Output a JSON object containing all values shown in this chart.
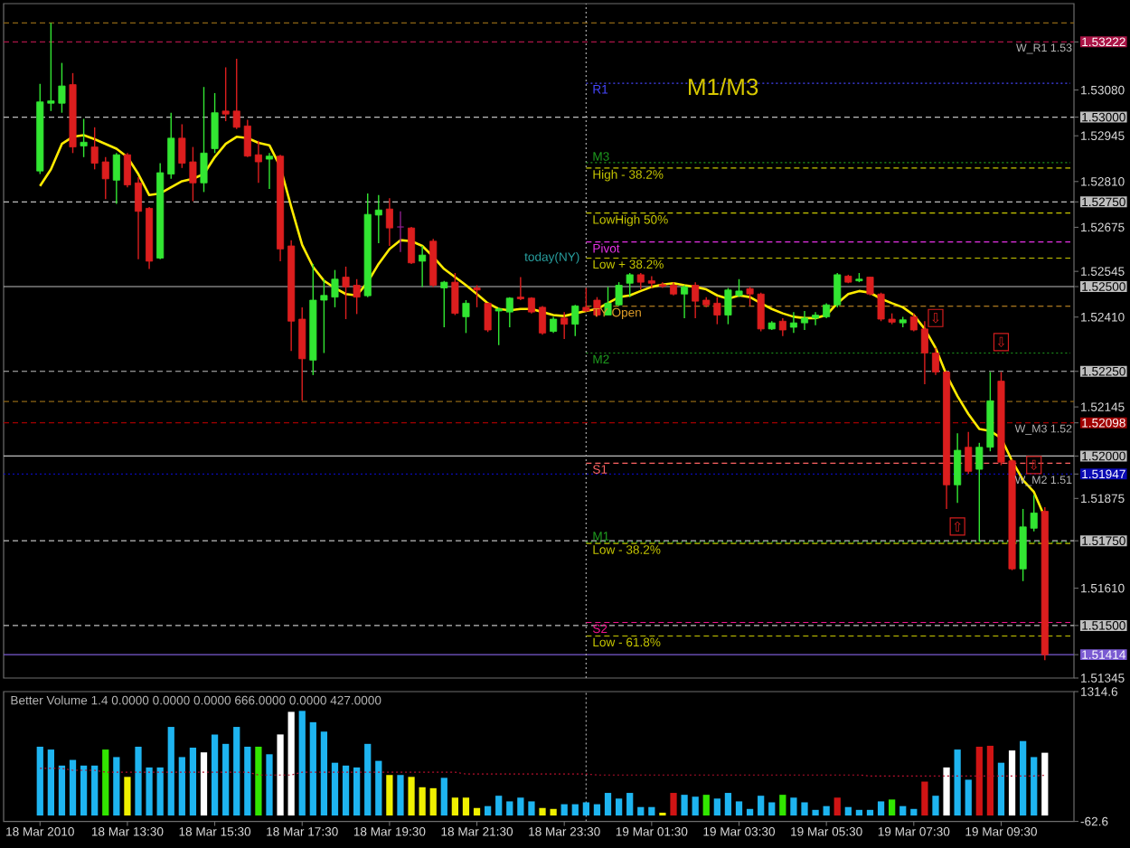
{
  "chart_data": [
    {
      "type": "candlestick",
      "x": [
        "2010-03-18T11:30",
        "2010-03-18T11:45",
        "2010-03-18T12:00",
        "2010-03-18T12:15",
        "2010-03-18T12:30",
        "2010-03-18T12:45",
        "2010-03-18T13:00",
        "2010-03-18T13:15",
        "2010-03-18T13:30",
        "2010-03-18T13:45",
        "2010-03-18T14:00",
        "2010-03-18T14:15",
        "2010-03-18T14:30",
        "2010-03-18T14:45",
        "2010-03-18T15:00",
        "2010-03-18T15:15",
        "2010-03-18T15:30",
        "2010-03-18T15:45",
        "2010-03-18T16:00",
        "2010-03-18T16:15",
        "2010-03-18T16:30",
        "2010-03-18T16:45",
        "2010-03-18T17:00",
        "2010-03-18T17:15",
        "2010-03-18T17:30",
        "2010-03-18T17:45",
        "2010-03-18T18:00",
        "2010-03-18T18:15",
        "2010-03-18T18:30",
        "2010-03-18T18:45",
        "2010-03-18T19:00",
        "2010-03-18T19:15",
        "2010-03-18T19:30",
        "2010-03-18T19:45",
        "2010-03-18T20:00",
        "2010-03-18T20:15",
        "2010-03-18T20:30",
        "2010-03-18T20:45",
        "2010-03-18T21:00",
        "2010-03-18T21:15",
        "2010-03-18T21:30",
        "2010-03-18T21:45",
        "2010-03-18T22:00",
        "2010-03-18T22:15",
        "2010-03-18T22:30",
        "2010-03-18T22:45",
        "2010-03-18T23:00",
        "2010-03-18T23:15",
        "2010-03-18T23:30",
        "2010-03-18T23:45",
        "2010-03-19T00:00",
        "2010-03-19T00:15",
        "2010-03-19T00:30",
        "2010-03-19T00:45",
        "2010-03-19T01:00",
        "2010-03-19T01:15",
        "2010-03-19T01:30",
        "2010-03-19T01:45",
        "2010-03-19T02:00",
        "2010-03-19T02:15",
        "2010-03-19T02:30",
        "2010-03-19T02:45",
        "2010-03-19T03:00",
        "2010-03-19T03:15",
        "2010-03-19T03:30",
        "2010-03-19T03:45",
        "2010-03-19T04:00",
        "2010-03-19T04:15",
        "2010-03-19T04:30",
        "2010-03-19T04:45",
        "2010-03-19T05:00",
        "2010-03-19T05:15",
        "2010-03-19T05:30",
        "2010-03-19T05:45",
        "2010-03-19T06:00",
        "2010-03-19T06:15",
        "2010-03-19T06:30",
        "2010-03-19T06:45",
        "2010-03-19T07:00",
        "2010-03-19T07:15",
        "2010-03-19T07:30",
        "2010-03-19T07:45",
        "2010-03-19T08:00",
        "2010-03-19T08:15",
        "2010-03-19T08:30",
        "2010-03-19T08:45",
        "2010-03-19T09:00",
        "2010-03-19T09:15",
        "2010-03-19T09:30",
        "2010-03-19T09:45",
        "2010-03-19T10:00",
        "2010-03-19T10:15",
        "2010-03-19T10:30"
      ],
      "ohlc": [
        [
          1.52841,
          1.53098,
          1.52832,
          1.53045
        ],
        [
          1.53041,
          1.53278,
          1.53018,
          1.53048
        ],
        [
          1.53041,
          1.5316,
          1.53013,
          1.53092
        ],
        [
          1.53096,
          1.5313,
          1.52894,
          1.52912
        ],
        [
          1.52915,
          1.52995,
          1.52882,
          1.52926
        ],
        [
          1.52912,
          1.5297,
          1.52846,
          1.52864
        ],
        [
          1.52868,
          1.52882,
          1.52758,
          1.52818
        ],
        [
          1.52814,
          1.52894,
          1.52744,
          1.52889
        ],
        [
          1.52889,
          1.52894,
          1.52793,
          1.528
        ],
        [
          1.52806,
          1.52823,
          1.52581,
          1.52722
        ],
        [
          1.52731,
          1.52735,
          1.52552,
          1.52575
        ],
        [
          1.52584,
          1.52864,
          1.52581,
          1.52836
        ],
        [
          1.52832,
          1.53013,
          1.52818,
          1.52938
        ],
        [
          1.52938,
          1.52979,
          1.5285,
          1.52864
        ],
        [
          1.52868,
          1.52912,
          1.52752,
          1.52806
        ],
        [
          1.52806,
          1.53089,
          1.52779,
          1.52894
        ],
        [
          1.52907,
          1.53071,
          1.52894,
          1.53013
        ],
        [
          1.53018,
          1.53147,
          1.52988,
          1.53009
        ],
        [
          1.53018,
          1.53172,
          1.52965,
          1.5297
        ],
        [
          1.52974,
          1.52992,
          1.52882,
          1.52885
        ],
        [
          1.52889,
          1.5293,
          1.52806,
          1.52868
        ],
        [
          1.52876,
          1.52894,
          1.52788,
          1.52885
        ],
        [
          1.52885,
          1.52889,
          1.52575,
          1.52611
        ],
        [
          1.5262,
          1.52637,
          1.5231,
          1.52398
        ],
        [
          1.52404,
          1.52439,
          1.52163,
          1.52287
        ],
        [
          1.52283,
          1.52567,
          1.52239,
          1.5246
        ],
        [
          1.5246,
          1.52522,
          1.52304,
          1.52474
        ],
        [
          1.52469,
          1.52549,
          1.52439,
          1.52522
        ],
        [
          1.52528,
          1.52559,
          1.52404,
          1.52499
        ],
        [
          1.52504,
          1.52522,
          1.52419,
          1.52469
        ],
        [
          1.52473,
          1.52775,
          1.52469,
          1.52713
        ],
        [
          1.52711,
          1.5277,
          1.52628,
          1.52726
        ],
        [
          1.52729,
          1.52761,
          1.5262,
          1.52673
        ],
        [
          1.52676,
          1.52722,
          1.52602,
          1.52676
        ],
        [
          1.52673,
          1.52676,
          1.52567,
          1.5257
        ],
        [
          1.52575,
          1.5262,
          1.52499,
          1.52593
        ],
        [
          1.52634,
          1.52641,
          1.52499,
          1.52504
        ],
        [
          1.52496,
          1.52517,
          1.5238,
          1.52513
        ],
        [
          1.52513,
          1.5254,
          1.52416,
          1.52421
        ],
        [
          1.52411,
          1.5246,
          1.52363,
          1.52451
        ],
        [
          1.52496,
          1.52504,
          1.52439,
          1.5249
        ],
        [
          1.52451,
          1.52451,
          1.52366,
          1.52372
        ],
        [
          1.52428,
          1.52439,
          1.52327,
          1.52434
        ],
        [
          1.52425,
          1.52469,
          1.5238,
          1.52466
        ],
        [
          1.52469,
          1.52528,
          1.5246,
          1.52464
        ],
        [
          1.52466,
          1.52469,
          1.52421,
          1.52425
        ],
        [
          1.52439,
          1.52443,
          1.52358,
          1.52363
        ],
        [
          1.52368,
          1.52411,
          1.52363,
          1.52404
        ],
        [
          1.52407,
          1.52425,
          1.52345,
          1.52389
        ],
        [
          1.52389,
          1.52446,
          1.52354,
          1.52443
        ],
        [
          1.52439,
          1.52496,
          1.52425,
          1.52428
        ],
        [
          1.5246,
          1.52469,
          1.52411,
          1.52416
        ],
        [
          1.52416,
          1.52499,
          1.52416,
          1.52451
        ],
        [
          1.52446,
          1.52513,
          1.52443,
          1.52504
        ],
        [
          1.5251,
          1.5254,
          1.52469,
          1.52535
        ],
        [
          1.52535,
          1.5254,
          1.52492,
          1.52513
        ],
        [
          1.52517,
          1.52531,
          1.52496,
          1.5251
        ],
        [
          1.52506,
          1.52513,
          1.52496,
          1.52501
        ],
        [
          1.52504,
          1.52513,
          1.52474,
          1.52478
        ],
        [
          1.52478,
          1.52504,
          1.52407,
          1.52499
        ],
        [
          1.52504,
          1.52513,
          1.52407,
          1.52457
        ],
        [
          1.5246,
          1.52469,
          1.52439,
          1.52446
        ],
        [
          1.52451,
          1.52469,
          1.52389,
          1.52416
        ],
        [
          1.52416,
          1.52496,
          1.52389,
          1.5249
        ],
        [
          1.52474,
          1.52522,
          1.52469,
          1.52487
        ],
        [
          1.52494,
          1.52499,
          1.52443,
          1.52478
        ],
        [
          1.52478,
          1.52482,
          1.52368,
          1.52375
        ],
        [
          1.52375,
          1.52398,
          1.52372,
          1.52393
        ],
        [
          1.52398,
          1.52407,
          1.52354,
          1.52372
        ],
        [
          1.5238,
          1.52425,
          1.52363,
          1.52393
        ],
        [
          1.52393,
          1.52428,
          1.52372,
          1.52407
        ],
        [
          1.52407,
          1.52425,
          1.52386,
          1.52416
        ],
        [
          1.52411,
          1.52451,
          1.52407,
          1.52446
        ],
        [
          1.52446,
          1.5254,
          1.52439,
          1.52535
        ],
        [
          1.52531,
          1.52535,
          1.5251,
          1.52513
        ],
        [
          1.52517,
          1.5254,
          1.52513,
          1.52522
        ],
        [
          1.52528,
          1.52528,
          1.52474,
          1.52478
        ],
        [
          1.52478,
          1.52482,
          1.52398,
          1.52404
        ],
        [
          1.52404,
          1.52421,
          1.52389,
          1.52395
        ],
        [
          1.52393,
          1.52411,
          1.5238,
          1.52402
        ],
        [
          1.52411,
          1.52421,
          1.52368,
          1.52372
        ],
        [
          1.52375,
          1.52398,
          1.52212,
          1.52304
        ],
        [
          1.52304,
          1.52319,
          1.52239,
          1.52248
        ],
        [
          1.52248,
          1.52251,
          1.51844,
          1.51915
        ],
        [
          1.51915,
          1.52067,
          1.51862,
          1.52017
        ],
        [
          1.52026,
          1.52071,
          1.51947,
          1.51955
        ],
        [
          1.51961,
          1.52039,
          1.51748,
          1.52026
        ],
        [
          1.52026,
          1.52248,
          1.52014,
          1.52163
        ],
        [
          1.52221,
          1.52248,
          1.51973,
          1.51982
        ],
        [
          1.51986,
          1.51991,
          1.51663,
          1.51667
        ],
        [
          1.51667,
          1.51844,
          1.51631,
          1.51791
        ],
        [
          1.51787,
          1.51885,
          1.51778,
          1.51832
        ],
        [
          1.51837,
          1.51849,
          1.51398,
          1.51414
        ]
      ],
      "colors": [
        "#32e632",
        "#32e632",
        "#32e632",
        "#dc1e1e",
        "#32e632",
        "#dc1e1e",
        "#dc1e1e",
        "#32e632",
        "#dc1e1e",
        "#dc1e1e",
        "#dc1e1e",
        "#32e632",
        "#32e632",
        "#dc1e1e",
        "#dc1e1e",
        "#32e632",
        "#32e632",
        "#dc1e1e",
        "#dc1e1e",
        "#dc1e1e",
        "#dc1e1e",
        "#32e632",
        "#dc1e1e",
        "#dc1e1e",
        "#dc1e1e",
        "#32e632",
        "#32e632",
        "#32e632",
        "#dc1e1e",
        "#dc1e1e",
        "#32e632",
        "#32e632",
        "#dc1e1e",
        "#8c1e8c",
        "#dc1e1e",
        "#32e632",
        "#dc1e1e",
        "#32e632",
        "#dc1e1e",
        "#32e632",
        "#dc1e1e",
        "#dc1e1e",
        "#32e632",
        "#32e632",
        "#dc1e1e",
        "#dc1e1e",
        "#dc1e1e",
        "#32e632",
        "#dc1e1e",
        "#32e632",
        "#dc1e1e",
        "#dc1e1e",
        "#32e632",
        "#32e632",
        "#32e632",
        "#dc1e1e",
        "#dc1e1e",
        "#dc1e1e",
        "#dc1e1e",
        "#32e632",
        "#dc1e1e",
        "#dc1e1e",
        "#dc1e1e",
        "#32e632",
        "#32e632",
        "#dc1e1e",
        "#dc1e1e",
        "#32e632",
        "#dc1e1e",
        "#32e632",
        "#32e632",
        "#32e632",
        "#32e632",
        "#32e632",
        "#dc1e1e",
        "#32e632",
        "#dc1e1e",
        "#dc1e1e",
        "#dc1e1e",
        "#32e632",
        "#dc1e1e",
        "#dc1e1e",
        "#dc1e1e",
        "#dc1e1e",
        "#32e632",
        "#dc1e1e",
        "#32e632",
        "#32e632",
        "#dc1e1e",
        "#dc1e1e",
        "#32e632",
        "#32e632",
        "#dc1e1e"
      ],
      "series": [
        {
          "type": "line",
          "name": "R1",
          "color": "#4646ff",
          "line_style": "dotted",
          "x": [
            "2010-03-19T00:00",
            "2010-03-19T11:05"
          ],
          "values": [
            1.531,
            1.531
          ]
        },
        {
          "type": "line",
          "name": "M3",
          "color": "#1e9b1e",
          "line_style": "dotted",
          "x": [
            "2010-03-19T00:00",
            "2010-03-19T11:05"
          ],
          "values": [
            1.52866,
            1.52866
          ]
        },
        {
          "type": "line",
          "name": "High - 38.2%",
          "color": "#c8c800",
          "line_style": "dashed",
          "x": [
            "2010-03-19T00:00",
            "2010-03-19T11:05"
          ],
          "values": [
            1.5285,
            1.5285
          ]
        },
        {
          "type": "line",
          "name": "LowHigh 50%",
          "color": "#c8c800",
          "line_style": "dashed",
          "x": [
            "2010-03-19T00:00",
            "2010-03-19T11:05"
          ],
          "values": [
            1.52717,
            1.52717
          ]
        },
        {
          "type": "line",
          "name": "Pivot",
          "color": "#e632e6",
          "line_style": "dashed",
          "x": [
            "2010-03-19T00:00",
            "2010-03-19T11:05"
          ],
          "values": [
            1.52632,
            1.52632
          ]
        },
        {
          "type": "line",
          "name": "Low + 38.2%",
          "color": "#c8c800",
          "line_style": "dashed",
          "x": [
            "2010-03-19T00:00",
            "2010-03-19T11:05"
          ],
          "values": [
            1.52584,
            1.52584
          ]
        },
        {
          "type": "line",
          "name": "TY Open",
          "color": "#dc9b28",
          "line_style": "dashed",
          "x": [
            "2010-03-19T00:00",
            "2010-03-19T11:05"
          ],
          "values": [
            1.52442,
            1.52442
          ]
        },
        {
          "type": "line",
          "name": "M2",
          "color": "#1e9b1e",
          "line_style": "dotted",
          "x": [
            "2010-03-19T00:00",
            "2010-03-19T11:05"
          ],
          "values": [
            1.52304,
            1.52304
          ]
        },
        {
          "type": "line",
          "name": "S1",
          "color": "#ff6464",
          "line_style": "dashed",
          "x": [
            "2010-03-19T00:00",
            "2010-03-19T11:05"
          ],
          "values": [
            1.51979,
            1.51979
          ]
        },
        {
          "type": "line",
          "name": "M1",
          "color": "#1e9b1e",
          "line_style": "dotted",
          "x": [
            "2010-03-19T00:00",
            "2010-03-19T11:05"
          ],
          "values": [
            1.51746,
            1.51746
          ]
        },
        {
          "type": "line",
          "name": "Low - 38.2%",
          "color": "#c8c800",
          "line_style": "dashed",
          "x": [
            "2010-03-19T00:00",
            "2010-03-19T11:05"
          ],
          "values": [
            1.51742,
            1.51742
          ]
        },
        {
          "type": "line",
          "name": "S2",
          "color": "#f0148c",
          "line_style": "dashed",
          "x": [
            "2010-03-19T00:00",
            "2010-03-19T11:05"
          ],
          "values": [
            1.51509,
            1.51509
          ]
        },
        {
          "type": "line",
          "name": "Low - 61.8%",
          "color": "#c8c800",
          "line_style": "dashed",
          "x": [
            "2010-03-19T00:00",
            "2010-03-19T11:05"
          ],
          "values": [
            1.51469,
            1.51469
          ]
        },
        {
          "type": "line",
          "color": "#ffeb00",
          "values": [
            1.52797,
            1.52846,
            1.52921,
            1.52942,
            1.52947,
            1.52935,
            1.52921,
            1.52907,
            1.52882,
            1.52832,
            1.5277,
            1.52775,
            1.52793,
            1.52811,
            1.52818,
            1.52832,
            1.52882,
            1.52921,
            1.52942,
            1.52938,
            1.52924,
            1.52917,
            1.52853,
            1.52735,
            1.52623,
            1.52558,
            1.52517,
            1.52496,
            1.52478,
            1.52474,
            1.52513,
            1.52567,
            1.52611,
            1.52637,
            1.52634,
            1.5262,
            1.52588,
            1.52552,
            1.52528,
            1.52504,
            1.52478,
            1.52451,
            1.52434,
            1.5243,
            1.52434,
            1.52434,
            1.52425,
            1.52416,
            1.52413,
            1.52421,
            1.52428,
            1.52434,
            1.52451,
            1.52469,
            1.52474,
            1.52487,
            1.52499,
            1.52506,
            1.5251,
            1.52504,
            1.52499,
            1.52492,
            1.52474,
            1.52464,
            1.52474,
            1.52469,
            1.52451,
            1.52434,
            1.52421,
            1.52411,
            1.52407,
            1.52407,
            1.52416,
            1.52451,
            1.52478,
            1.52487,
            1.52482,
            1.52464,
            1.52451,
            1.52439,
            1.52416,
            1.52375,
            1.52319,
            1.52239,
            1.52177,
            1.52124,
            1.5208,
            1.52074,
            1.52053,
            1.51986,
            1.51929,
            1.51894,
            1.51819
          ]
        }
      ],
      "xlim": [
        "2010-03-18T10:40",
        "2010-03-19T11:10"
      ],
      "ylim": [
        1.51345,
        1.53335
      ],
      "yticks": [
        1.53222,
        {
          "value": 1.5308,
          "label": "1.53080"
        },
        {
          "value": 1.53,
          "label": "1.53000"
        },
        1.52945,
        {
          "value": 1.5281,
          "label": "1.52810"
        },
        {
          "value": 1.5275,
          "label": "1.52750"
        },
        1.52675,
        1.52545,
        {
          "value": 1.525,
          "label": "1.52500"
        },
        {
          "value": 1.5241,
          "label": "1.52410"
        },
        {
          "value": 1.5225,
          "label": "1.52250"
        },
        1.52145,
        1.52098,
        {
          "value": 1.52,
          "label": "1.52000"
        },
        1.51947,
        1.51875,
        {
          "value": 1.5175,
          "label": "1.51750"
        },
        {
          "value": 1.5161,
          "label": "1.51610"
        },
        {
          "value": 1.515,
          "label": "1.51500"
        },
        1.51414,
        1.51345
      ],
      "tick_labels": "y",
      "ref_lines": [
        {
          "axis": "y",
          "value": 1.53278,
          "color": "#8c6414",
          "line_style": "dashed"
        },
        {
          "axis": "y",
          "value": 1.53222,
          "color": "#aa1446",
          "line_style": "dashed",
          "label": "W_R1 1.53"
        },
        {
          "axis": "y",
          "value": 1.53,
          "color": "#bebebe",
          "line_style": "dashed"
        },
        {
          "axis": "y",
          "value": 1.5275,
          "color": "#bebebe",
          "line_style": "dashed"
        },
        {
          "axis": "y",
          "value": 1.525,
          "color": "#bebebe",
          "line_style": "solid"
        },
        {
          "axis": "y",
          "value": 1.5225,
          "color": "#bebebe",
          "line_style": "dashed"
        },
        {
          "axis": "y",
          "value": 1.52161,
          "color": "#8c6414",
          "line_style": "dashed"
        },
        {
          "axis": "y",
          "value": 1.52098,
          "color": "#a00000",
          "line_style": "dashed",
          "label": "W_M3 1.52"
        },
        {
          "axis": "y",
          "value": 1.52,
          "color": "#bebebe",
          "line_style": "solid"
        },
        {
          "axis": "y",
          "value": 1.51947,
          "color": "#0a0ab4",
          "line_style": "dotted",
          "label": "W_M2 1.51"
        },
        {
          "axis": "y",
          "value": 1.5175,
          "color": "#bebebe",
          "line_style": "dashed"
        },
        {
          "axis": "y",
          "value": 1.515,
          "color": "#bebebe",
          "line_style": "dashed"
        },
        {
          "axis": "y",
          "value": 1.51414,
          "color": "#7a5ad2",
          "line_style": "solid"
        },
        {
          "axis": "x",
          "value": "2010-03-19T00:00",
          "color": "#a8a8a8",
          "line_style": "dotted"
        }
      ],
      "annotations": [
        "M1/M3",
        "today(NY)",
        {
          "text": "⇩",
          "x": "2010-03-19T08:00",
          "y": 1.52319
        },
        {
          "text": "⇩",
          "x": "2010-03-19T09:30",
          "y": 1.52248
        },
        {
          "text": "⇩",
          "x": "2010-03-19T10:15",
          "y": 1.51885
        },
        {
          "text": "⇧",
          "x": "2010-03-19T08:30",
          "y": 1.51862
        }
      ]
    },
    {
      "type": "bar",
      "title": "Better Volume 1.4 0.0000 0.0000 0.0000 666.0000 0.0000 427.0000",
      "x": [
        "2010-03-18T11:30",
        "2010-03-18T11:45",
        "2010-03-18T12:00",
        "2010-03-18T12:15",
        "2010-03-18T12:30",
        "2010-03-18T12:45",
        "2010-03-18T13:00",
        "2010-03-18T13:15",
        "2010-03-18T13:30",
        "2010-03-18T13:45",
        "2010-03-18T14:00",
        "2010-03-18T14:15",
        "2010-03-18T14:30",
        "2010-03-18T14:45",
        "2010-03-18T15:00",
        "2010-03-18T15:15",
        "2010-03-18T15:30",
        "2010-03-18T15:45",
        "2010-03-18T16:00",
        "2010-03-18T16:15",
        "2010-03-18T16:30",
        "2010-03-18T16:45",
        "2010-03-18T17:00",
        "2010-03-18T17:15",
        "2010-03-18T17:30",
        "2010-03-18T17:45",
        "2010-03-18T18:00",
        "2010-03-18T18:15",
        "2010-03-18T18:30",
        "2010-03-18T18:45",
        "2010-03-18T19:00",
        "2010-03-18T19:15",
        "2010-03-18T19:30",
        "2010-03-18T19:45",
        "2010-03-18T20:00",
        "2010-03-18T20:15",
        "2010-03-18T20:30",
        "2010-03-18T20:45",
        "2010-03-18T21:00",
        "2010-03-18T21:15",
        "2010-03-18T21:30",
        "2010-03-18T21:45",
        "2010-03-18T22:00",
        "2010-03-18T22:15",
        "2010-03-18T22:30",
        "2010-03-18T22:45",
        "2010-03-18T23:00",
        "2010-03-18T23:15",
        "2010-03-18T23:30",
        "2010-03-18T23:45",
        "2010-03-19T00:00",
        "2010-03-19T00:15",
        "2010-03-19T00:30",
        "2010-03-19T00:45",
        "2010-03-19T01:00",
        "2010-03-19T01:15",
        "2010-03-19T01:30",
        "2010-03-19T01:45",
        "2010-03-19T02:00",
        "2010-03-19T02:15",
        "2010-03-19T02:30",
        "2010-03-19T02:45",
        "2010-03-19T03:00",
        "2010-03-19T03:15",
        "2010-03-19T03:30",
        "2010-03-19T03:45",
        "2010-03-19T04:00",
        "2010-03-19T04:15",
        "2010-03-19T04:30",
        "2010-03-19T04:45",
        "2010-03-19T05:00",
        "2010-03-19T05:15",
        "2010-03-19T05:30",
        "2010-03-19T05:45",
        "2010-03-19T06:00",
        "2010-03-19T06:15",
        "2010-03-19T06:30",
        "2010-03-19T06:45",
        "2010-03-19T07:00",
        "2010-03-19T07:15",
        "2010-03-19T07:30",
        "2010-03-19T07:45",
        "2010-03-19T08:00",
        "2010-03-19T08:15",
        "2010-03-19T08:30",
        "2010-03-19T08:45",
        "2010-03-19T09:00",
        "2010-03-19T09:15",
        "2010-03-19T09:30",
        "2010-03-19T09:45",
        "2010-03-19T10:00",
        "2010-03-19T10:15",
        "2010-03-19T10:30"
      ],
      "series": [
        {
          "type": "bar",
          "values": [
            730,
            700,
            530,
            590,
            530,
            530,
            700,
            620,
            410,
            730,
            510,
            510,
            940,
            620,
            720,
            670,
            860,
            760,
            940,
            730,
            730,
            650,
            860,
            1100,
            1110,
            990,
            890,
            560,
            530,
            510,
            760,
            580,
            430,
            430,
            410,
            300,
            290,
            400,
            190,
            190,
            80,
            100,
            210,
            150,
            190,
            150,
            80,
            70,
            120,
            120,
            140,
            120,
            240,
            180,
            240,
            90,
            90,
            30,
            240,
            220,
            200,
            220,
            180,
            240,
            150,
            70,
            210,
            140,
            220,
            190,
            140,
            60,
            100,
            190,
            90,
            60,
            60,
            150,
            170,
            100,
            70,
            360,
            210,
            510,
            700,
            380,
            730,
            740,
            560,
            690,
            790,
            620,
            666
          ],
          "colors": [
            "#1eb4f0",
            "#1eb4f0",
            "#1eb4f0",
            "#1eb4f0",
            "#1eb4f0",
            "#1eb4f0",
            "#32e600",
            "#1eb4f0",
            "#f0f000",
            "#1eb4f0",
            "#1eb4f0",
            "#1eb4f0",
            "#1eb4f0",
            "#1eb4f0",
            "#1eb4f0",
            "#ffffff",
            "#1eb4f0",
            "#1eb4f0",
            "#1eb4f0",
            "#1eb4f0",
            "#32e600",
            "#1eb4f0",
            "#ffffff",
            "#ffffff",
            "#1eb4f0",
            "#1eb4f0",
            "#1eb4f0",
            "#1eb4f0",
            "#1eb4f0",
            "#1eb4f0",
            "#1eb4f0",
            "#1eb4f0",
            "#f0f000",
            "#1eb4f0",
            "#f0f000",
            "#f0f000",
            "#f0f000",
            "#1eb4f0",
            "#f0f000",
            "#f0f000",
            "#f0f000",
            "#1eb4f0",
            "#1eb4f0",
            "#1eb4f0",
            "#1eb4f0",
            "#1eb4f0",
            "#f0f000",
            "#f0f000",
            "#1eb4f0",
            "#1eb4f0",
            "#1eb4f0",
            "#1eb4f0",
            "#1eb4f0",
            "#1eb4f0",
            "#1eb4f0",
            "#1eb4f0",
            "#1eb4f0",
            "#f0f000",
            "#d01414",
            "#1eb4f0",
            "#1eb4f0",
            "#32e600",
            "#1eb4f0",
            "#1eb4f0",
            "#1eb4f0",
            "#1eb4f0",
            "#1eb4f0",
            "#1eb4f0",
            "#32e600",
            "#1eb4f0",
            "#1eb4f0",
            "#1eb4f0",
            "#1eb4f0",
            "#d01414",
            "#1eb4f0",
            "#1eb4f0",
            "#1eb4f0",
            "#1eb4f0",
            "#32e600",
            "#1eb4f0",
            "#1eb4f0",
            "#d01414",
            "#1eb4f0",
            "#ffffff",
            "#1eb4f0",
            "#1eb4f0",
            "#d01414",
            "#d01414",
            "#1eb4f0",
            "#ffffff",
            "#1eb4f0",
            "#1eb4f0",
            "#ffffff"
          ]
        },
        {
          "type": "line",
          "color": "#b4102d",
          "line_style": "dotted",
          "values": [
            500,
            500,
            500,
            480,
            480,
            480,
            460,
            460,
            460,
            460,
            460,
            460,
            460,
            460,
            460,
            460,
            460,
            460,
            460,
            460,
            430,
            430,
            430,
            430,
            460,
            460,
            460,
            460,
            460,
            460,
            460,
            460,
            460,
            460,
            460,
            460,
            460,
            460,
            460,
            440,
            440,
            440,
            440,
            440,
            440,
            440,
            440,
            440,
            440,
            440,
            440,
            430,
            430,
            430,
            430,
            430,
            430,
            430,
            430,
            430,
            430,
            430,
            430,
            430,
            430,
            430,
            430,
            430,
            430,
            430,
            430,
            430,
            430,
            430,
            430,
            430,
            420,
            420,
            420,
            420,
            420,
            420,
            420,
            420,
            420,
            420,
            420,
            420,
            420,
            420,
            420,
            420,
            427
          ]
        }
      ],
      "xlim": [
        "2010-03-18T10:40",
        "2010-03-19T11:10"
      ],
      "ylim": [
        -62.6,
        1314.6
      ],
      "yticks": [
        1314.6,
        -62.6
      ],
      "xticks": [
        {
          "value": "2010-03-18T11:30",
          "label": "18 Mar 2010"
        },
        {
          "value": "2010-03-18T13:30",
          "label": "18 Mar 13:30"
        },
        {
          "value": "2010-03-18T15:30",
          "label": "18 Mar 15:30"
        },
        {
          "value": "2010-03-18T17:30",
          "label": "18 Mar 17:30"
        },
        {
          "value": "2010-03-18T19:30",
          "label": "18 Mar 19:30"
        },
        {
          "value": "2010-03-18T21:30",
          "label": "18 Mar 21:30"
        },
        {
          "value": "2010-03-18T23:30",
          "label": "18 Mar 23:30"
        },
        {
          "value": "2010-03-19T01:30",
          "label": "19 Mar 01:30"
        },
        {
          "value": "2010-03-19T03:30",
          "label": "19 Mar 03:30"
        },
        {
          "value": "2010-03-19T05:30",
          "label": "19 Mar 05:30"
        },
        {
          "value": "2010-03-19T07:30",
          "label": "19 Mar 07:30"
        },
        {
          "value": "2010-03-19T09:30",
          "label": "19 Mar 09:30"
        }
      ],
      "ref_lines": [
        {
          "axis": "x",
          "value": "2010-03-19T00:00",
          "color": "#a8a8a8",
          "line_style": "dotted"
        }
      ]
    }
  ]
}
